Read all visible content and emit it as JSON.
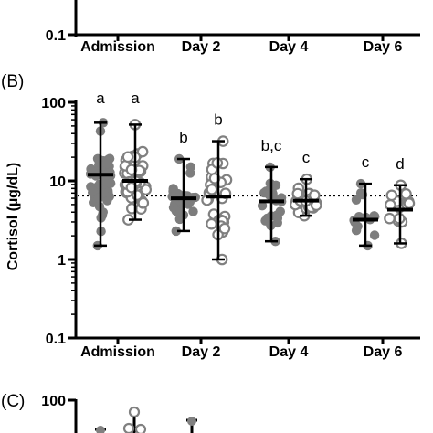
{
  "panels": {
    "b_label": "(B)",
    "c_label": "(C)"
  },
  "top_panel": {
    "ytick": "0.1",
    "categories": [
      "Admission",
      "Day 2",
      "Day 4",
      "Day 6"
    ]
  },
  "bottom_panel": {
    "ytick": "100"
  },
  "chart_data": {
    "type": "scatter",
    "ylabel": "Cortisol (µg/dL)",
    "yscale": "log",
    "ylim": [
      0.1,
      100
    ],
    "yticks": [
      "0.1",
      "1",
      "10",
      "100"
    ],
    "categories": [
      "Admission",
      "Day 2",
      "Day 4",
      "Day 6"
    ],
    "reference_line": 6.5,
    "legend": "none",
    "grid": false,
    "groups": [
      {
        "category": "Admission",
        "marker": "filled",
        "median": 12,
        "min": 1.5,
        "max": 55,
        "label": "a"
      },
      {
        "category": "Admission",
        "marker": "open",
        "median": 10,
        "min": 3.2,
        "max": 52,
        "label": "a"
      },
      {
        "category": "Day 2",
        "marker": "filled",
        "median": 6,
        "min": 2.3,
        "max": 19,
        "label": "b"
      },
      {
        "category": "Day 2",
        "marker": "open",
        "median": 6.3,
        "min": 1.0,
        "max": 32,
        "label": "b"
      },
      {
        "category": "Day 4",
        "marker": "filled",
        "median": 5.5,
        "min": 1.7,
        "max": 15,
        "label": "b,c"
      },
      {
        "category": "Day 4",
        "marker": "open",
        "median": 5.6,
        "min": 3.6,
        "max": 10.5,
        "label": "c"
      },
      {
        "category": "Day 6",
        "marker": "filled",
        "median": 3.2,
        "min": 1.5,
        "max": 9.2,
        "label": "c"
      },
      {
        "category": "Day 6",
        "marker": "open",
        "median": 4.3,
        "min": 1.6,
        "max": 8.8,
        "label": "d"
      }
    ]
  }
}
